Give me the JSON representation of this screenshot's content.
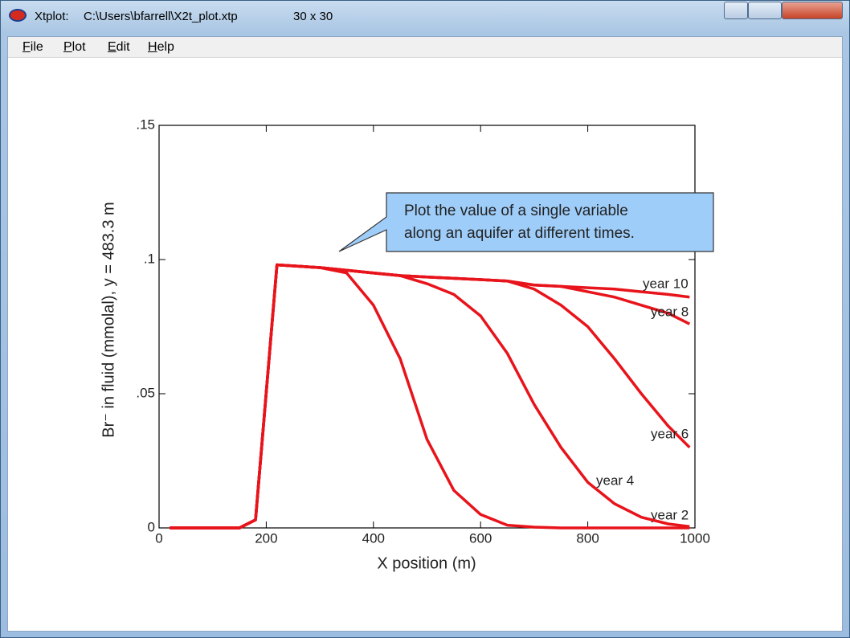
{
  "window": {
    "title": "Xtplot:",
    "path": "C:\\Users\\bfarrell\\X2t_plot.xtp",
    "grid_size": "30 x 30"
  },
  "menu": [
    "File",
    "Plot",
    "Edit",
    "Help"
  ],
  "chart_data": {
    "type": "line",
    "x_label": "X position (m)",
    "y_label": "Br⁻ in fluid (mmolal), y = 483.3 m",
    "annotation": [
      "Plot the value of a single variable",
      "along an aquifer at different times."
    ],
    "x": [
      20,
      150,
      180,
      220,
      300,
      350,
      400,
      450,
      500,
      550,
      600,
      650,
      700,
      750,
      800,
      850,
      900,
      950,
      990
    ],
    "series": [
      {
        "name": "year 2",
        "color": "#e8141b",
        "values": [
          0,
          0,
          0.003,
          0.098,
          0.097,
          0.095,
          0.083,
          0.063,
          0.033,
          0.014,
          0.005,
          0.001,
          0.0003,
          0,
          0,
          0,
          0,
          0,
          0
        ]
      },
      {
        "name": "year 4",
        "color": "#e8141b",
        "values": [
          0,
          0,
          0.003,
          0.098,
          0.097,
          0.096,
          0.095,
          0.094,
          0.091,
          0.087,
          0.079,
          0.065,
          0.046,
          0.03,
          0.017,
          0.009,
          0.004,
          0.0015,
          0.0005
        ]
      },
      {
        "name": "year 6",
        "color": "#e8141b",
        "values": [
          0,
          0,
          0.003,
          0.098,
          0.097,
          0.096,
          0.095,
          0.094,
          0.0935,
          0.093,
          0.0925,
          0.092,
          0.089,
          0.083,
          0.075,
          0.063,
          0.05,
          0.038,
          0.03
        ]
      },
      {
        "name": "year 8",
        "color": "#e8141b",
        "values": [
          0,
          0,
          0.003,
          0.098,
          0.097,
          0.096,
          0.095,
          0.094,
          0.0935,
          0.093,
          0.0925,
          0.092,
          0.0905,
          0.09,
          0.088,
          0.086,
          0.083,
          0.08,
          0.076
        ]
      },
      {
        "name": "year 10",
        "color": "#e8141b",
        "values": [
          0,
          0,
          0.003,
          0.098,
          0.097,
          0.096,
          0.095,
          0.094,
          0.0935,
          0.093,
          0.0925,
          0.092,
          0.0905,
          0.09,
          0.0895,
          0.089,
          0.088,
          0.087,
          0.086
        ]
      }
    ],
    "xlim": [
      0,
      1000
    ],
    "xticks": [
      0,
      200,
      400,
      600,
      800,
      1000
    ],
    "ylim": [
      0,
      0.15
    ],
    "yticks": [
      0,
      {
        "value": 0.05,
        "label": ".05"
      },
      {
        "value": 0.1,
        "label": ".1"
      },
      {
        "value": 0.15,
        "label": ".15"
      }
    ]
  }
}
